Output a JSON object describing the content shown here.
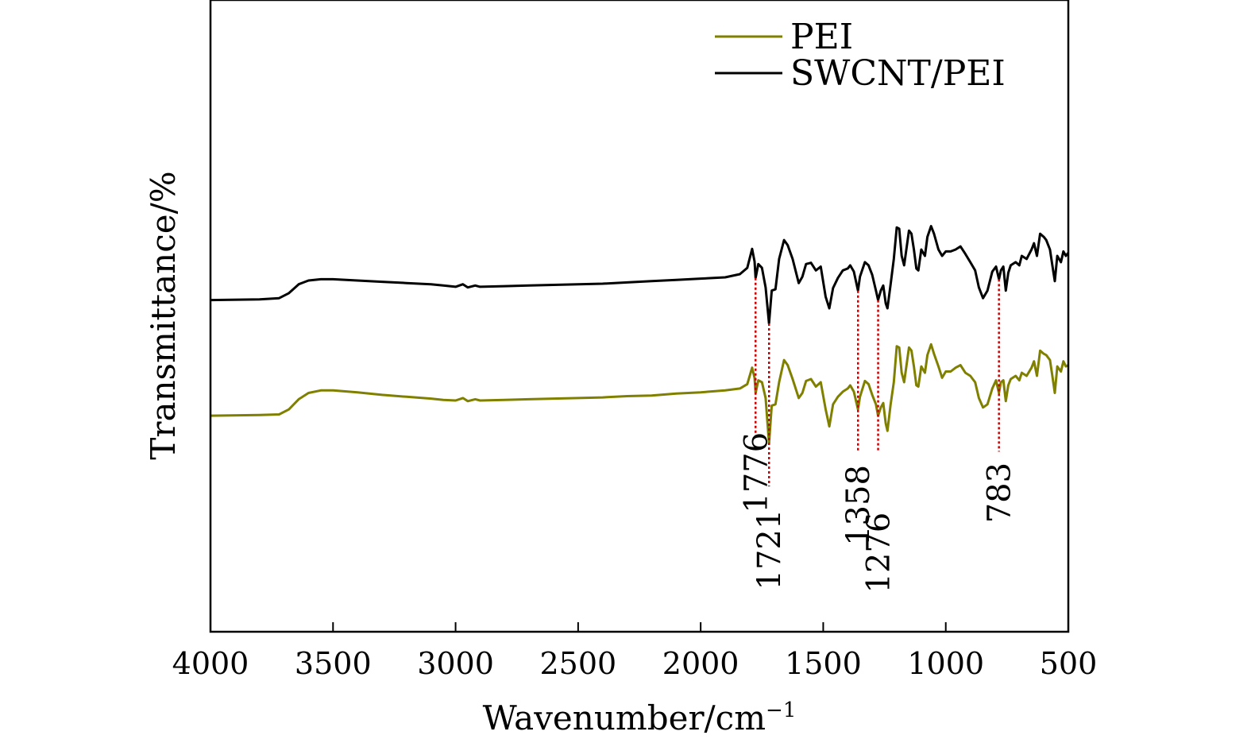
{
  "chart_data": {
    "type": "line",
    "title": "",
    "xlabel": "Wavenumber/cm",
    "xlabel_superscript": "−1",
    "ylabel": "Transmittance/%",
    "xlim": [
      4000,
      500
    ],
    "ylim": [
      0,
      10
    ],
    "x_ticks": [
      "4000",
      "3500",
      "3000",
      "2500",
      "2000",
      "1500",
      "1000",
      "500"
    ],
    "y_ticks_shown": false,
    "grid": false,
    "legend_position": "top-right",
    "series": [
      {
        "name": "PEI",
        "color": "#808000",
        "points": [
          [
            4000,
            3.42
          ],
          [
            3800,
            3.43
          ],
          [
            3720,
            3.44
          ],
          [
            3680,
            3.52
          ],
          [
            3640,
            3.68
          ],
          [
            3600,
            3.78
          ],
          [
            3550,
            3.82
          ],
          [
            3500,
            3.82
          ],
          [
            3400,
            3.79
          ],
          [
            3300,
            3.75
          ],
          [
            3200,
            3.72
          ],
          [
            3100,
            3.69
          ],
          [
            3050,
            3.67
          ],
          [
            3000,
            3.66
          ],
          [
            2970,
            3.7
          ],
          [
            2950,
            3.65
          ],
          [
            2920,
            3.68
          ],
          [
            2900,
            3.66
          ],
          [
            2800,
            3.67
          ],
          [
            2700,
            3.68
          ],
          [
            2600,
            3.69
          ],
          [
            2500,
            3.7
          ],
          [
            2400,
            3.71
          ],
          [
            2300,
            3.73
          ],
          [
            2200,
            3.74
          ],
          [
            2100,
            3.77
          ],
          [
            2000,
            3.79
          ],
          [
            1900,
            3.82
          ],
          [
            1840,
            3.85
          ],
          [
            1810,
            3.92
          ],
          [
            1790,
            4.18
          ],
          [
            1780,
            4.02
          ],
          [
            1776,
            3.78
          ],
          [
            1765,
            3.98
          ],
          [
            1750,
            3.95
          ],
          [
            1735,
            3.7
          ],
          [
            1721,
            2.98
          ],
          [
            1710,
            3.58
          ],
          [
            1695,
            3.6
          ],
          [
            1680,
            3.95
          ],
          [
            1660,
            4.3
          ],
          [
            1645,
            4.22
          ],
          [
            1625,
            4.0
          ],
          [
            1600,
            3.7
          ],
          [
            1585,
            3.78
          ],
          [
            1570,
            3.97
          ],
          [
            1550,
            4.0
          ],
          [
            1530,
            3.88
          ],
          [
            1510,
            3.95
          ],
          [
            1490,
            3.52
          ],
          [
            1475,
            3.25
          ],
          [
            1460,
            3.6
          ],
          [
            1440,
            3.72
          ],
          [
            1420,
            3.8
          ],
          [
            1400,
            3.85
          ],
          [
            1390,
            3.9
          ],
          [
            1375,
            3.8
          ],
          [
            1358,
            3.52
          ],
          [
            1350,
            3.72
          ],
          [
            1330,
            3.97
          ],
          [
            1315,
            3.92
          ],
          [
            1300,
            3.75
          ],
          [
            1285,
            3.6
          ],
          [
            1276,
            3.42
          ],
          [
            1265,
            3.55
          ],
          [
            1255,
            3.62
          ],
          [
            1245,
            3.3
          ],
          [
            1238,
            3.18
          ],
          [
            1225,
            3.6
          ],
          [
            1212,
            3.95
          ],
          [
            1200,
            4.52
          ],
          [
            1190,
            4.5
          ],
          [
            1180,
            4.1
          ],
          [
            1170,
            3.95
          ],
          [
            1150,
            4.5
          ],
          [
            1140,
            4.45
          ],
          [
            1130,
            4.2
          ],
          [
            1120,
            3.9
          ],
          [
            1112,
            3.88
          ],
          [
            1100,
            4.2
          ],
          [
            1085,
            4.1
          ],
          [
            1075,
            4.38
          ],
          [
            1060,
            4.55
          ],
          [
            1048,
            4.4
          ],
          [
            1030,
            4.2
          ],
          [
            1015,
            4.02
          ],
          [
            1000,
            4.12
          ],
          [
            980,
            4.12
          ],
          [
            960,
            4.18
          ],
          [
            940,
            4.22
          ],
          [
            920,
            4.1
          ],
          [
            900,
            4.05
          ],
          [
            880,
            3.95
          ],
          [
            865,
            3.7
          ],
          [
            848,
            3.55
          ],
          [
            830,
            3.6
          ],
          [
            810,
            3.85
          ],
          [
            795,
            3.98
          ],
          [
            783,
            3.78
          ],
          [
            775,
            3.95
          ],
          [
            765,
            3.98
          ],
          [
            755,
            3.65
          ],
          [
            745,
            3.9
          ],
          [
            735,
            4.0
          ],
          [
            715,
            4.05
          ],
          [
            700,
            3.98
          ],
          [
            690,
            4.1
          ],
          [
            670,
            4.05
          ],
          [
            650,
            4.18
          ],
          [
            640,
            4.28
          ],
          [
            628,
            4.05
          ],
          [
            615,
            4.45
          ],
          [
            600,
            4.4
          ],
          [
            590,
            4.38
          ],
          [
            575,
            4.3
          ],
          [
            565,
            4.05
          ],
          [
            555,
            3.78
          ],
          [
            545,
            4.2
          ],
          [
            530,
            4.12
          ],
          [
            520,
            4.28
          ],
          [
            510,
            4.2
          ],
          [
            500,
            4.22
          ]
        ]
      },
      {
        "name": "SWCNT/PEI",
        "color": "#000000",
        "points": [
          [
            4000,
            5.25
          ],
          [
            3800,
            5.26
          ],
          [
            3720,
            5.28
          ],
          [
            3680,
            5.36
          ],
          [
            3640,
            5.5
          ],
          [
            3600,
            5.56
          ],
          [
            3550,
            5.58
          ],
          [
            3500,
            5.58
          ],
          [
            3400,
            5.56
          ],
          [
            3300,
            5.54
          ],
          [
            3200,
            5.52
          ],
          [
            3100,
            5.5
          ],
          [
            3050,
            5.48
          ],
          [
            3000,
            5.46
          ],
          [
            2970,
            5.5
          ],
          [
            2950,
            5.45
          ],
          [
            2920,
            5.48
          ],
          [
            2900,
            5.46
          ],
          [
            2800,
            5.47
          ],
          [
            2700,
            5.48
          ],
          [
            2600,
            5.49
          ],
          [
            2500,
            5.5
          ],
          [
            2400,
            5.51
          ],
          [
            2300,
            5.53
          ],
          [
            2200,
            5.55
          ],
          [
            2100,
            5.57
          ],
          [
            2000,
            5.59
          ],
          [
            1900,
            5.61
          ],
          [
            1840,
            5.66
          ],
          [
            1810,
            5.76
          ],
          [
            1790,
            6.06
          ],
          [
            1780,
            5.86
          ],
          [
            1776,
            5.6
          ],
          [
            1765,
            5.82
          ],
          [
            1750,
            5.76
          ],
          [
            1735,
            5.45
          ],
          [
            1721,
            4.88
          ],
          [
            1710,
            5.4
          ],
          [
            1695,
            5.42
          ],
          [
            1680,
            5.9
          ],
          [
            1660,
            6.2
          ],
          [
            1645,
            6.12
          ],
          [
            1625,
            5.9
          ],
          [
            1600,
            5.52
          ],
          [
            1585,
            5.62
          ],
          [
            1570,
            5.82
          ],
          [
            1550,
            5.84
          ],
          [
            1530,
            5.72
          ],
          [
            1510,
            5.78
          ],
          [
            1490,
            5.3
          ],
          [
            1475,
            5.12
          ],
          [
            1460,
            5.44
          ],
          [
            1440,
            5.6
          ],
          [
            1420,
            5.72
          ],
          [
            1400,
            5.75
          ],
          [
            1390,
            5.8
          ],
          [
            1375,
            5.7
          ],
          [
            1358,
            5.4
          ],
          [
            1350,
            5.62
          ],
          [
            1330,
            5.85
          ],
          [
            1315,
            5.8
          ],
          [
            1300,
            5.65
          ],
          [
            1285,
            5.4
          ],
          [
            1276,
            5.25
          ],
          [
            1265,
            5.4
          ],
          [
            1255,
            5.48
          ],
          [
            1245,
            5.2
          ],
          [
            1238,
            5.12
          ],
          [
            1225,
            5.5
          ],
          [
            1212,
            5.9
          ],
          [
            1200,
            6.4
          ],
          [
            1190,
            6.38
          ],
          [
            1180,
            5.95
          ],
          [
            1170,
            5.8
          ],
          [
            1150,
            6.35
          ],
          [
            1140,
            6.3
          ],
          [
            1130,
            6.05
          ],
          [
            1120,
            5.75
          ],
          [
            1112,
            5.72
          ],
          [
            1100,
            6.05
          ],
          [
            1085,
            5.95
          ],
          [
            1075,
            6.25
          ],
          [
            1060,
            6.42
          ],
          [
            1048,
            6.3
          ],
          [
            1030,
            6.05
          ],
          [
            1015,
            5.95
          ],
          [
            1000,
            6.02
          ],
          [
            980,
            6.02
          ],
          [
            960,
            6.05
          ],
          [
            940,
            6.1
          ],
          [
            920,
            5.98
          ],
          [
            900,
            5.85
          ],
          [
            880,
            5.72
          ],
          [
            865,
            5.45
          ],
          [
            848,
            5.28
          ],
          [
            830,
            5.4
          ],
          [
            810,
            5.7
          ],
          [
            795,
            5.78
          ],
          [
            783,
            5.58
          ],
          [
            775,
            5.72
          ],
          [
            765,
            5.78
          ],
          [
            755,
            5.4
          ],
          [
            745,
            5.68
          ],
          [
            735,
            5.8
          ],
          [
            715,
            5.85
          ],
          [
            700,
            5.8
          ],
          [
            690,
            5.95
          ],
          [
            670,
            5.9
          ],
          [
            650,
            6.05
          ],
          [
            640,
            6.15
          ],
          [
            628,
            5.95
          ],
          [
            615,
            6.3
          ],
          [
            600,
            6.25
          ],
          [
            590,
            6.2
          ],
          [
            575,
            6.05
          ],
          [
            565,
            5.8
          ],
          [
            555,
            5.55
          ],
          [
            545,
            5.95
          ],
          [
            530,
            5.85
          ],
          [
            520,
            6.02
          ],
          [
            510,
            5.95
          ],
          [
            500,
            6.0
          ]
        ]
      }
    ],
    "annotations": [
      {
        "wavenumber": 1776,
        "label": "1776",
        "line_color": "#cc0000",
        "top_y": 5.6,
        "bottom_y": 3.1,
        "label_y": 2.52
      },
      {
        "wavenumber": 1721,
        "label": "1721",
        "line_color": "#cc0000",
        "top_y": 4.88,
        "bottom_y": 2.3,
        "label_y": 1.3
      },
      {
        "wavenumber": 1358,
        "label": "1358",
        "line_color": "#cc0000",
        "top_y": 5.4,
        "bottom_y": 2.85,
        "label_y": 2.0
      },
      {
        "wavenumber": 1276,
        "label": "1276",
        "line_color": "#cc0000",
        "top_y": 5.25,
        "bottom_y": 2.85,
        "label_y": 1.25
      },
      {
        "wavenumber": 783,
        "label": "783",
        "line_color": "#cc0000",
        "top_y": 5.58,
        "bottom_y": 2.85,
        "label_y": 2.2
      }
    ]
  }
}
